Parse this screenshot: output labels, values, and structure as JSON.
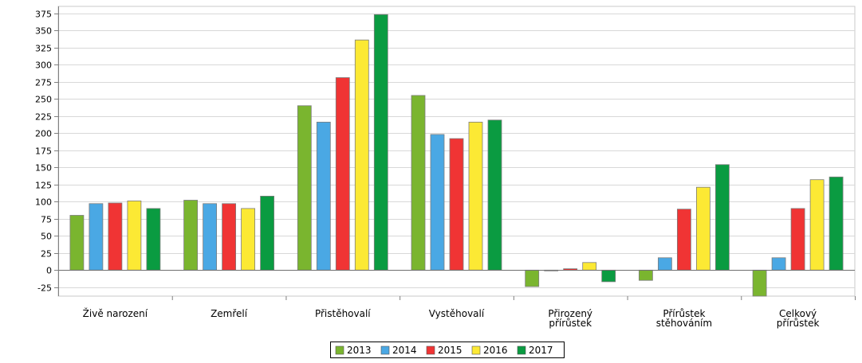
{
  "chart_data": {
    "type": "bar",
    "categories": [
      [
        "Živě narození"
      ],
      [
        "Zemřelí"
      ],
      [
        "Přistěhovalí"
      ],
      [
        "Vystěhovalí"
      ],
      [
        "Přirozený",
        "přírůstek"
      ],
      [
        "Přírůstek",
        "stěhováním"
      ],
      [
        "Celkový",
        "přírůstek"
      ]
    ],
    "series": [
      {
        "name": "2013",
        "color": "#7ab52f",
        "values": [
          80,
          102,
          240,
          255,
          -24,
          -15,
          -39
        ]
      },
      {
        "name": "2014",
        "color": "#4aa8e4",
        "values": [
          97,
          97,
          216,
          198,
          -1,
          18,
          18
        ]
      },
      {
        "name": "2015",
        "color": "#f03434",
        "values": [
          98,
          97,
          281,
          192,
          2,
          89,
          90
        ]
      },
      {
        "name": "2016",
        "color": "#fce934",
        "values": [
          101,
          90,
          336,
          216,
          11,
          121,
          132
        ]
      },
      {
        "name": "2017",
        "color": "#0a9b41",
        "values": [
          90,
          108,
          373,
          219,
          -17,
          154,
          136
        ]
      }
    ],
    "yticks": [
      -25,
      0,
      25,
      50,
      75,
      100,
      125,
      150,
      175,
      200,
      225,
      250,
      275,
      300,
      325,
      350,
      375
    ],
    "ylim": [
      -38,
      385
    ],
    "grid": true,
    "legend_position": "bottom-center"
  }
}
